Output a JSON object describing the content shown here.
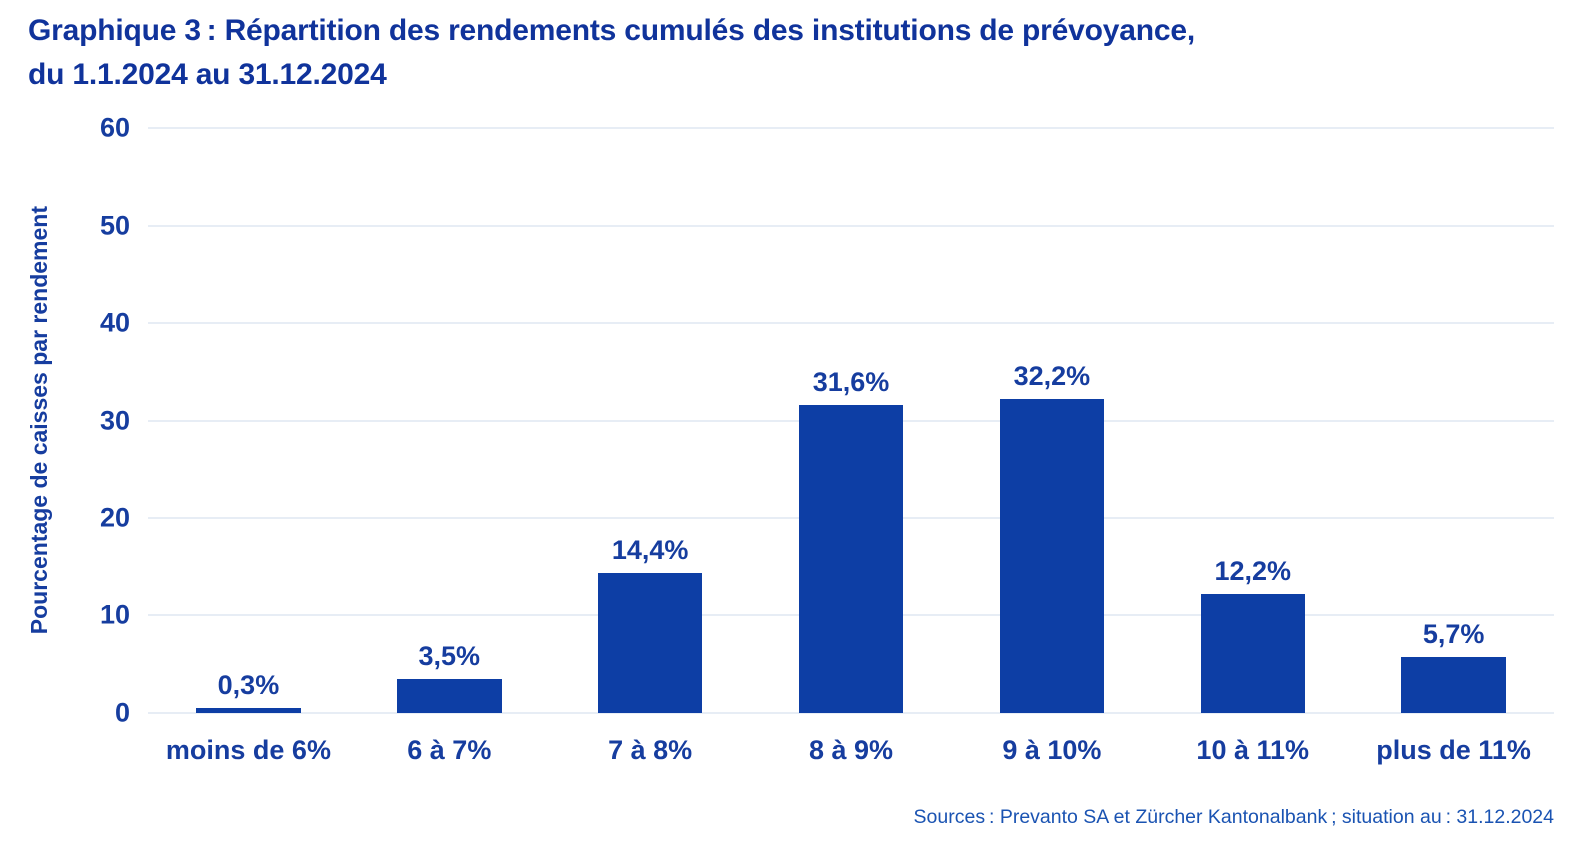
{
  "title": {
    "line1": "Graphique 3 : Répartition des rendements cumulés des institutions de prévoyance,",
    "line2": "du 1.1.2024 au 31.12.2024"
  },
  "chart_data": {
    "type": "bar",
    "title": "Graphique 3 : Répartition des rendements cumulés des institutions de prévoyance, du 1.1.2024 au 31.12.2024",
    "categories": [
      "moins de 6%",
      "6 à 7%",
      "7 à 8%",
      "8 à 9%",
      "9 à 10%",
      "10 à 11%",
      "plus de 11%"
    ],
    "values": [
      0.3,
      3.5,
      14.4,
      31.6,
      32.2,
      12.2,
      5.7
    ],
    "value_labels": [
      "0,3%",
      "3,5%",
      "14,4%",
      "31,6%",
      "32,2%",
      "12,2%",
      "5,7%"
    ],
    "xlabel": "",
    "ylabel": "Pourcentage de caisses par rendement",
    "ylim": [
      0,
      60
    ],
    "yticks": [
      0,
      10,
      20,
      30,
      40,
      50,
      60
    ],
    "grid": "horizontal",
    "legend": "none"
  },
  "source": "Sources : Prevanto SA et Zürcher Kantonalbank ; situation au : 31.12.2024",
  "colors": {
    "title_text": "#10339B",
    "axis_text": "#163D9F",
    "bar_fill": "#0D3EA5",
    "gridline": "#E7EDF5",
    "source_text": "#1A53B2",
    "background": "#FFFFFF"
  }
}
